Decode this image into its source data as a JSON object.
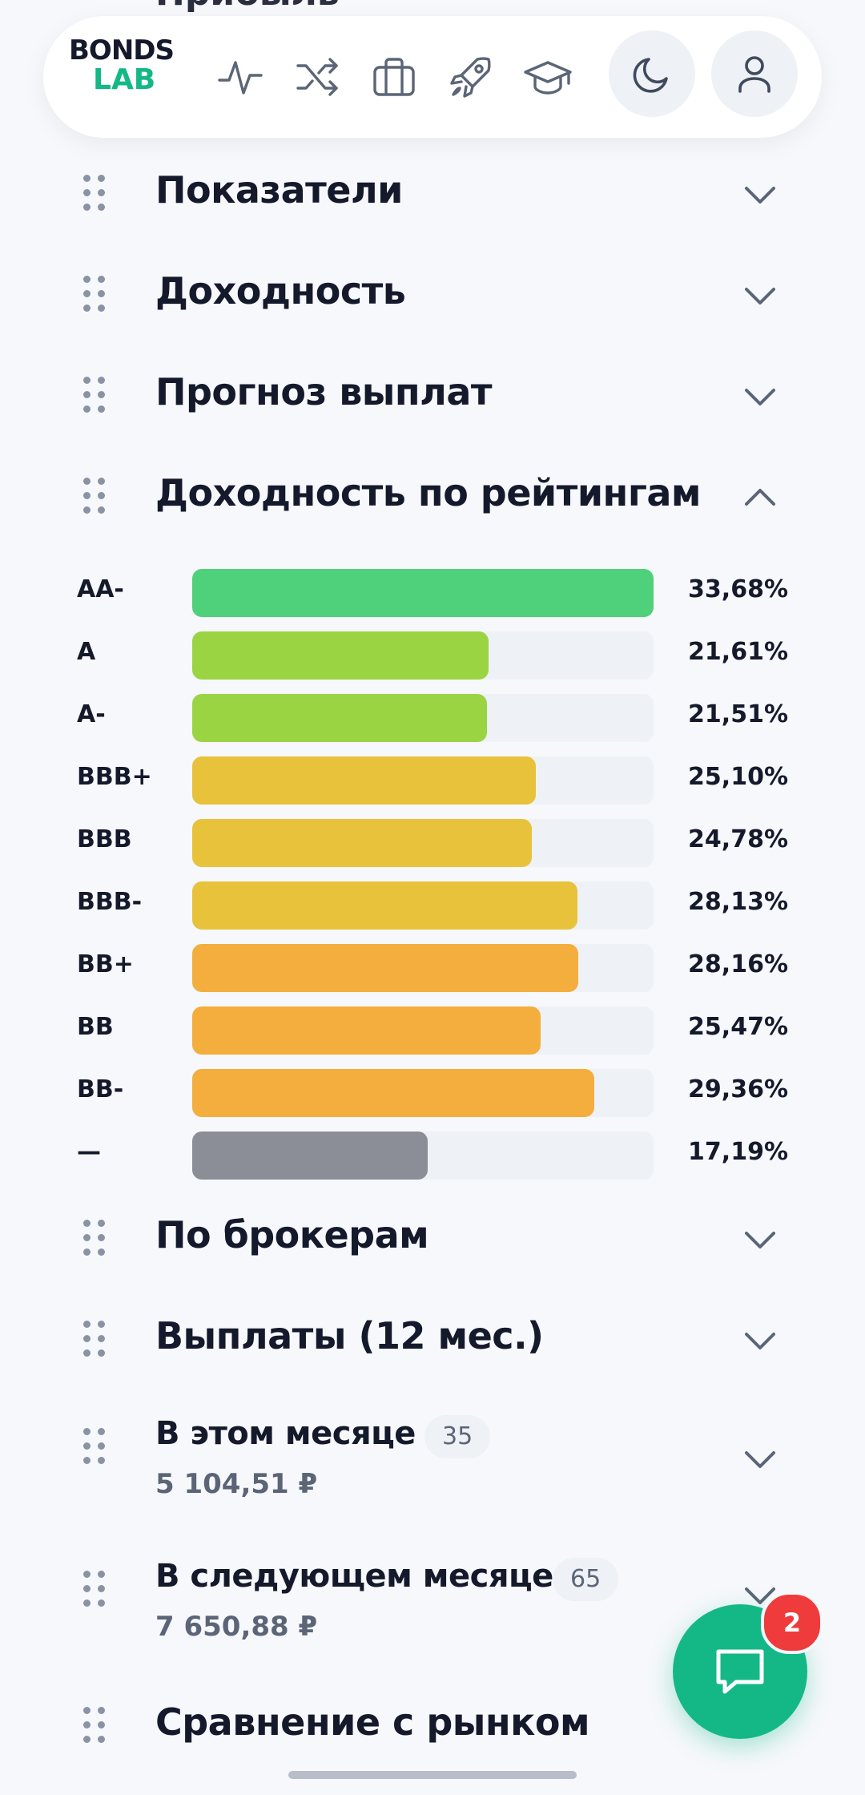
{
  "partial_heading": "Прибыль",
  "header": {
    "logo_line1": "BONDS",
    "logo_line2": "LAB",
    "icons": [
      "pulse-icon",
      "shuffle-icon",
      "briefcase-icon",
      "rocket-icon",
      "graduation-cap-icon"
    ],
    "theme_icon": "moon-icon",
    "profile_icon": "user-icon"
  },
  "sections_top": [
    {
      "title": "Показатели",
      "expanded": false
    },
    {
      "title": "Доходность",
      "expanded": false
    },
    {
      "title": "Прогноз выплат",
      "expanded": false
    },
    {
      "title": "Доходность по рейтингам",
      "expanded": true
    }
  ],
  "ratings": [
    {
      "label": "AA-",
      "value": "33,68%",
      "fraction": 1.0,
      "color": "#4fd07a"
    },
    {
      "label": "A",
      "value": "21,61%",
      "fraction": 0.642,
      "color": "#9ad443"
    },
    {
      "label": "A-",
      "value": "21,51%",
      "fraction": 0.639,
      "color": "#9ad443"
    },
    {
      "label": "BBB+",
      "value": "25,10%",
      "fraction": 0.745,
      "color": "#e8c23b"
    },
    {
      "label": "BBB",
      "value": "24,78%",
      "fraction": 0.736,
      "color": "#e8c23b"
    },
    {
      "label": "BBB-",
      "value": "28,13%",
      "fraction": 0.835,
      "color": "#e8c23b"
    },
    {
      "label": "BB+",
      "value": "28,16%",
      "fraction": 0.836,
      "color": "#f3ae3e"
    },
    {
      "label": "BB",
      "value": "25,47%",
      "fraction": 0.756,
      "color": "#f3ae3e"
    },
    {
      "label": "BB-",
      "value": "29,36%",
      "fraction": 0.872,
      "color": "#f3ae3e"
    },
    {
      "label": "—",
      "value": "17,19%",
      "fraction": 0.51,
      "color": "#8b8e97"
    }
  ],
  "sections_bottom": [
    {
      "title": "По брокерам"
    },
    {
      "title": "Выплаты (12 мес.)"
    },
    {
      "title": "В этом месяце",
      "badge": "35",
      "amount": "5 104,51 ₽"
    },
    {
      "title": "В следующем месяце",
      "badge": "65",
      "amount": "7 650,88 ₽"
    },
    {
      "title": "Сравнение с рынком"
    }
  ],
  "chat": {
    "badge": "2",
    "icon": "chat-bubble-icon"
  }
}
